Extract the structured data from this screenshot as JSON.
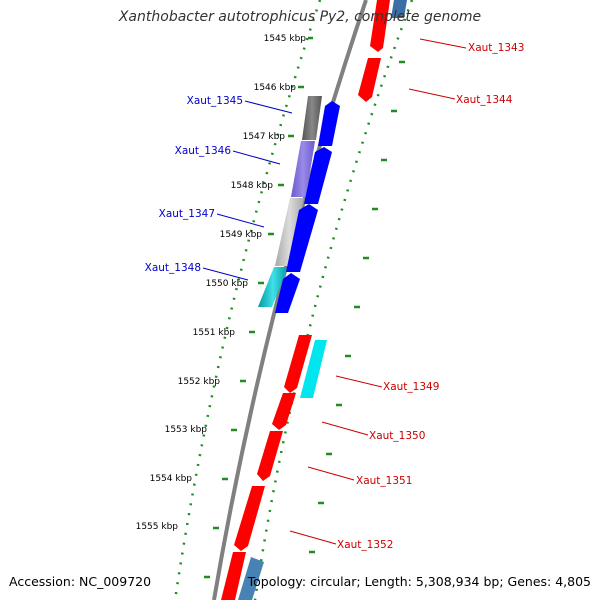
{
  "title": "Xanthobacter autotrophicus Py2, complete genome",
  "accession": "Accession: NC_009720",
  "summary": "Topology: circular; Length: 5,308,934 bp; Genes: 4,805",
  "scale_labels": [
    "1545 kbp",
    "1546 kbp",
    "1547 kbp",
    "1548 kbp",
    "1549 kbp",
    "1550 kbp",
    "1551 kbp",
    "1552 kbp",
    "1553 kbp",
    "1554 kbp",
    "1555 kbp"
  ],
  "genes_forward": [
    {
      "label": "Xaut_1345"
    },
    {
      "label": "Xaut_1346"
    },
    {
      "label": "Xaut_1347"
    },
    {
      "label": "Xaut_1348"
    }
  ],
  "genes_reverse": [
    {
      "label": "Xaut_1343"
    },
    {
      "label": "Xaut_1344"
    },
    {
      "label": "Xaut_1349"
    },
    {
      "label": "Xaut_1350"
    },
    {
      "label": "Xaut_1351"
    },
    {
      "label": "Xaut_1352"
    }
  ],
  "colors": {
    "forward_gene": "#0000ff",
    "reverse_gene": "#ff0000",
    "forward_label": "#0000cc",
    "reverse_label": "#cc0000",
    "backbone": "#808080",
    "tick": "#228b22"
  }
}
